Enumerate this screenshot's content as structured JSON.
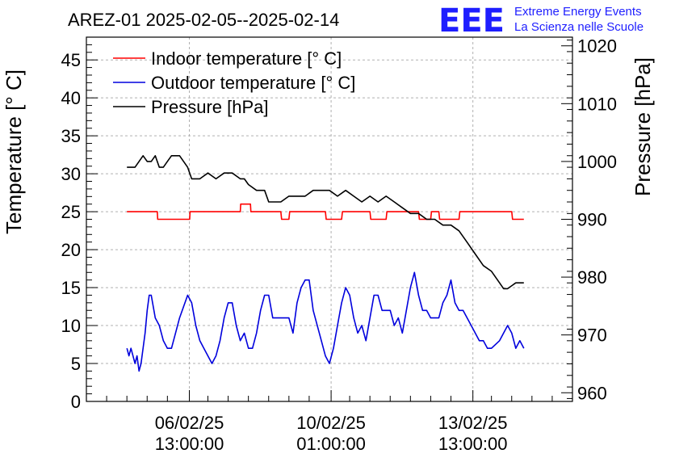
{
  "title": "AREZ-01 2025-02-05--2025-02-14",
  "logo": {
    "mark": "EEE",
    "line1": "Extreme Energy Events",
    "line2": "La Scienza nelle Scuole",
    "color": "#1e1eff"
  },
  "chart_data": {
    "type": "line",
    "title": "AREZ-01 2025-02-05--2025-02-14",
    "ylabel_left": "Temperature [° C]",
    "ylabel_right": "Pressure [hPa]",
    "xlabel": "",
    "x_unit": "days since 2025-02-05 00:00",
    "x_ticks": [
      {
        "x": 1.5417,
        "label_date": "06/02/25",
        "label_time": "13:00:00"
      },
      {
        "x": 5.0417,
        "label_date": "10/02/25",
        "label_time": "01:00:00"
      },
      {
        "x": 8.5417,
        "label_date": "13/02/25",
        "label_time": "13:00:00"
      }
    ],
    "xlim": [
      -1.0,
      11.0
    ],
    "ylim_left": [
      0,
      48
    ],
    "ylim_right": [
      958.5,
      1021.5
    ],
    "y_ticks_left": [
      0,
      5,
      10,
      15,
      20,
      25,
      30,
      35,
      40,
      45
    ],
    "y_ticks_right": [
      960,
      970,
      980,
      990,
      1000,
      1010,
      1020
    ],
    "grid": true,
    "legend_position": "top-left",
    "series": [
      {
        "name": "Indoor temperature [° C]",
        "axis": "left",
        "color": "#ff0000",
        "x": [
          0.0,
          0.75,
          0.76,
          1.55,
          1.56,
          2.8,
          2.81,
          3.05,
          3.06,
          3.8,
          3.82,
          4.0,
          4.02,
          4.9,
          4.92,
          5.3,
          5.32,
          6.0,
          6.02,
          6.4,
          6.42,
          7.2,
          7.22,
          7.5,
          7.52,
          7.7,
          7.72,
          8.2,
          8.22,
          9.0,
          9.5,
          9.52,
          9.8
        ],
        "y": [
          25,
          25,
          24,
          24,
          25,
          25,
          26,
          26,
          25,
          25,
          24,
          24,
          25,
          25,
          24,
          24,
          25,
          25,
          24,
          24,
          25,
          25,
          24,
          24,
          25,
          25,
          24,
          24,
          25,
          25,
          25,
          24,
          24
        ]
      },
      {
        "name": "Outdoor temperature [° C]",
        "axis": "left",
        "color": "#0000dd",
        "x": [
          0.0,
          0.05,
          0.1,
          0.15,
          0.2,
          0.25,
          0.3,
          0.35,
          0.4,
          0.45,
          0.5,
          0.55,
          0.6,
          0.7,
          0.8,
          0.9,
          1.0,
          1.1,
          1.2,
          1.3,
          1.5,
          1.6,
          1.7,
          1.8,
          1.9,
          2.0,
          2.1,
          2.2,
          2.3,
          2.4,
          2.5,
          2.6,
          2.7,
          2.8,
          2.9,
          3.0,
          3.1,
          3.2,
          3.3,
          3.4,
          3.5,
          3.6,
          3.7,
          3.8,
          4.0,
          4.1,
          4.2,
          4.3,
          4.4,
          4.5,
          4.6,
          4.8,
          4.9,
          5.0,
          5.1,
          5.2,
          5.3,
          5.4,
          5.5,
          5.6,
          5.7,
          5.8,
          5.9,
          6.0,
          6.1,
          6.2,
          6.3,
          6.5,
          6.6,
          6.7,
          6.8,
          6.9,
          7.0,
          7.1,
          7.2,
          7.3,
          7.4,
          7.5,
          7.6,
          7.7,
          7.8,
          7.9,
          8.0,
          8.1,
          8.2,
          8.3,
          8.5,
          8.6,
          8.7,
          8.8,
          8.9,
          9.0,
          9.2,
          9.4,
          9.5,
          9.6,
          9.7,
          9.8
        ],
        "y": [
          7,
          6,
          7,
          6,
          5,
          6,
          4,
          5,
          7,
          9,
          12,
          14,
          14,
          11,
          10,
          8,
          7,
          7,
          9,
          11,
          14,
          13,
          10,
          8,
          7,
          6,
          5,
          6,
          8,
          11,
          13,
          13,
          10,
          8,
          9,
          7,
          7,
          9,
          12,
          14,
          14,
          11,
          11,
          11,
          11,
          9,
          13,
          15,
          16,
          16,
          12,
          8,
          6,
          5,
          7,
          10,
          13,
          15,
          14,
          11,
          9,
          10,
          8,
          11,
          14,
          14,
          12,
          12,
          10,
          11,
          9,
          12,
          15,
          17,
          14,
          12,
          12,
          11,
          11,
          11,
          13,
          14,
          16,
          13,
          12,
          12,
          10,
          9,
          8,
          8,
          7,
          7,
          8,
          10,
          9,
          7,
          8,
          7
        ]
      },
      {
        "name": "Pressure [hPa]",
        "axis": "right",
        "color": "#000000",
        "x": [
          0.0,
          0.2,
          0.3,
          0.4,
          0.5,
          0.6,
          0.7,
          0.8,
          0.9,
          1.0,
          1.1,
          1.2,
          1.3,
          1.4,
          1.5,
          1.6,
          1.7,
          1.8,
          2.0,
          2.2,
          2.4,
          2.6,
          2.8,
          2.9,
          3.0,
          3.2,
          3.4,
          3.5,
          3.6,
          3.8,
          4.0,
          4.2,
          4.4,
          4.6,
          4.8,
          5.0,
          5.2,
          5.4,
          5.6,
          5.8,
          6.0,
          6.2,
          6.4,
          6.6,
          6.8,
          7.0,
          7.2,
          7.4,
          7.6,
          7.8,
          8.0,
          8.2,
          8.4,
          8.6,
          8.8,
          9.0,
          9.2,
          9.3,
          9.4,
          9.6,
          9.8
        ],
        "y": [
          999,
          999,
          1000,
          1001,
          1000,
          1000,
          1001,
          999,
          999,
          1000,
          1001,
          1001,
          1001,
          1000,
          999,
          997,
          997,
          997,
          998,
          997,
          998,
          998,
          997,
          997,
          996,
          995,
          995,
          993,
          993,
          993,
          994,
          994,
          994,
          995,
          995,
          995,
          994,
          995,
          994,
          993,
          994,
          993,
          994,
          993,
          992,
          991,
          991,
          990,
          990,
          989,
          989,
          988,
          986,
          984,
          982,
          981,
          979,
          978,
          978,
          979,
          979
        ]
      }
    ]
  }
}
